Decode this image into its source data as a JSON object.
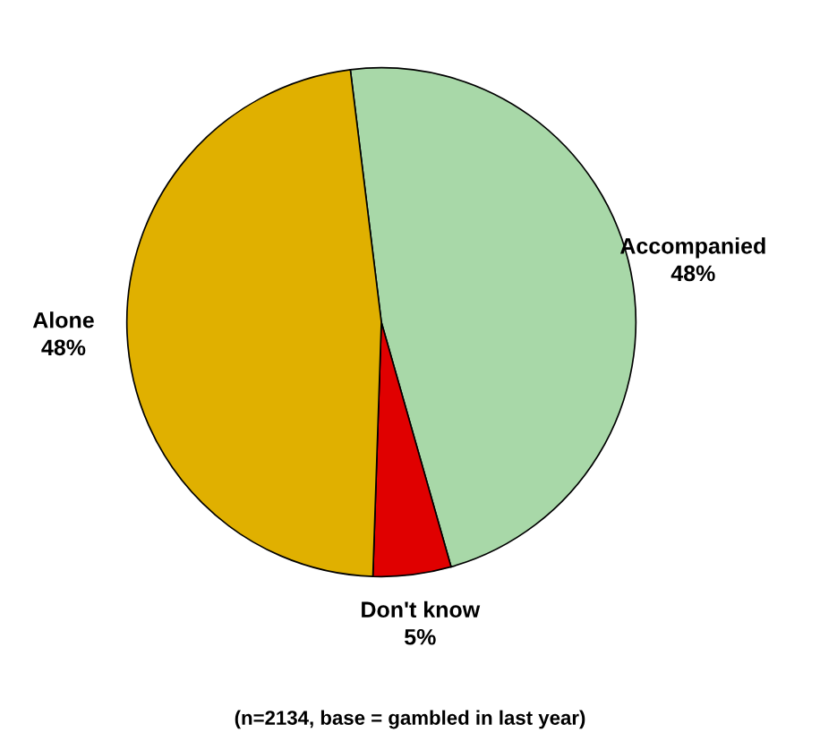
{
  "chart_data": {
    "type": "pie",
    "categories": [
      "Accompanied",
      "Don't know",
      "Alone"
    ],
    "values": [
      48,
      5,
      48
    ],
    "colors": [
      "#a8d8a8",
      "#e00000",
      "#e0b000"
    ],
    "value_labels": [
      "48%",
      "5%",
      "48%"
    ],
    "annotations": [
      "(n=2134, base = gambled in last year)"
    ]
  }
}
